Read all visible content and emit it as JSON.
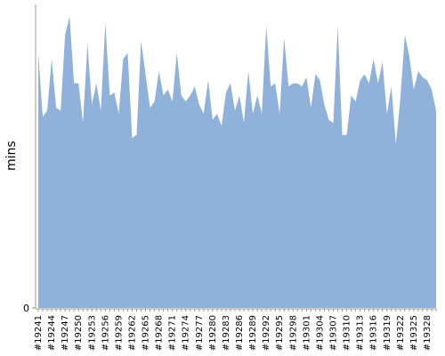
{
  "chart_data": {
    "type": "area",
    "y_label": "mins",
    "color": "#90b2da",
    "ylim": [
      0,
      100
    ],
    "yticks": [
      0
    ],
    "categories": [
      "#19241",
      null,
      null,
      "#19244",
      null,
      null,
      "#19247",
      null,
      null,
      "#19250",
      null,
      null,
      "#19253",
      null,
      null,
      "#19256",
      null,
      null,
      "#19259",
      null,
      null,
      "#19262",
      null,
      null,
      "#19265",
      null,
      null,
      "#19268",
      null,
      null,
      "#19271",
      null,
      null,
      "#19274",
      null,
      null,
      "#19277",
      null,
      null,
      "#19280",
      null,
      null,
      "#19283",
      null,
      null,
      "#19286",
      null,
      null,
      "#19289",
      null,
      null,
      "#19292",
      null,
      null,
      "#19295",
      null,
      null,
      "#19298",
      null,
      null,
      "#19301",
      null,
      null,
      "#19304",
      null,
      null,
      "#19307",
      null,
      null,
      "#19310",
      null,
      null,
      "#19313",
      null,
      null,
      "#19316",
      null,
      null,
      "#19319",
      null,
      null,
      "#19322",
      null,
      null,
      "#19325",
      null,
      null,
      "#19328",
      null,
      null
    ],
    "values": [
      84,
      63,
      65,
      82,
      66,
      65,
      90,
      96,
      74,
      74,
      61,
      87,
      67,
      74,
      65,
      94,
      70,
      71,
      64,
      82,
      84,
      56,
      57,
      88,
      77,
      66,
      68,
      78,
      70,
      72,
      68,
      84,
      70,
      68,
      70,
      73,
      67,
      64,
      75,
      62,
      64,
      60,
      71,
      74,
      65,
      70,
      61,
      78,
      64,
      70,
      64,
      93,
      73,
      74,
      64,
      89,
      73,
      74,
      74,
      73,
      76,
      66,
      77,
      75,
      67,
      62,
      61,
      93,
      57,
      57,
      70,
      68,
      75,
      77,
      74,
      82,
      74,
      81,
      64,
      73,
      54,
      69,
      90,
      83,
      72,
      78,
      76,
      75,
      72,
      65
    ]
  }
}
